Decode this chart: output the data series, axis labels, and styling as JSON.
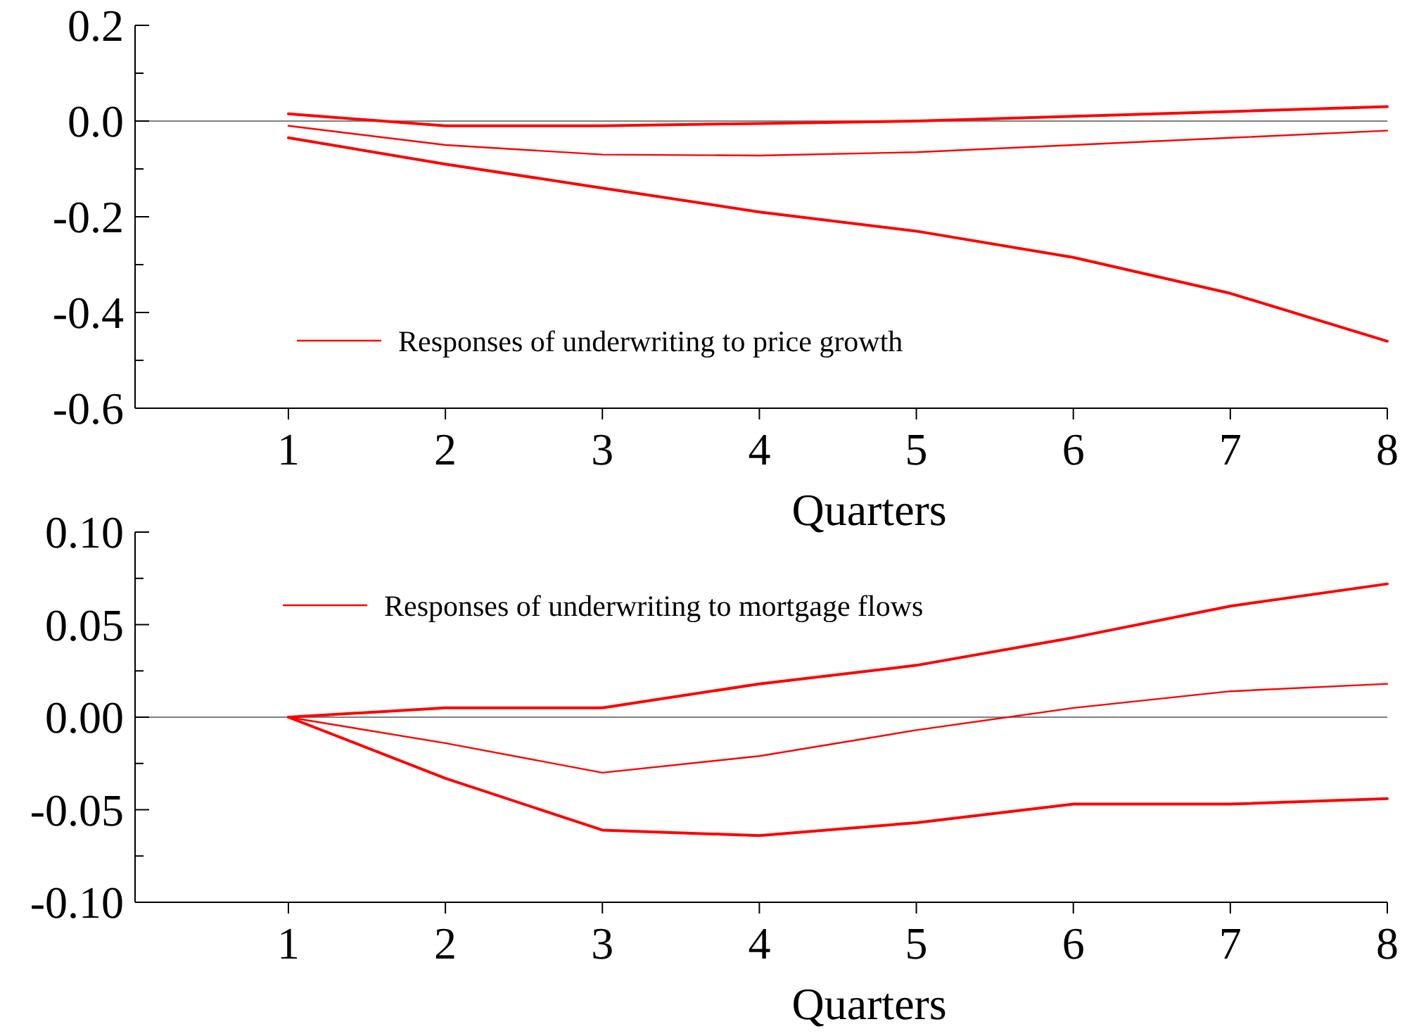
{
  "chart_data": [
    {
      "type": "line",
      "x": [
        1,
        2,
        3,
        4,
        5,
        6,
        7,
        8
      ],
      "xlabel": "Quarters",
      "xlim": [
        0,
        8
      ],
      "xticks": [
        1,
        2,
        3,
        4,
        5,
        6,
        7,
        8
      ],
      "ylim": [
        -0.6,
        0.2
      ],
      "yticks": [
        {
          "value": -0.6,
          "label": "-0.6"
        },
        {
          "value": -0.5,
          "label": null
        },
        {
          "value": -0.4,
          "label": "-0.4"
        },
        {
          "value": -0.3,
          "label": null
        },
        {
          "value": -0.2,
          "label": "-0.2"
        },
        {
          "value": -0.1,
          "label": null
        },
        {
          "value": 0,
          "label": "0.0"
        },
        {
          "value": 0.1,
          "label": null
        },
        {
          "value": 0.2,
          "label": "0.2"
        }
      ],
      "legend": "bottom left",
      "grid": false,
      "ref_lines": [
        {
          "axis": "y",
          "value": 0,
          "color": "#808080"
        }
      ],
      "series": [
        {
          "color": "#ff0000",
          "values": [
            0.015,
            -0.01,
            -0.01,
            -0.005,
            0.0,
            0.01,
            0.02,
            0.03
          ]
        },
        {
          "name": "Responses of underwriting to price growth",
          "color": "#ff0000",
          "values": [
            -0.01,
            -0.05,
            -0.07,
            -0.072,
            -0.065,
            -0.05,
            -0.035,
            -0.02
          ]
        },
        {
          "color": "#ff0000",
          "values": [
            -0.035,
            -0.09,
            -0.14,
            -0.19,
            -0.23,
            -0.285,
            -0.36,
            -0.46
          ]
        }
      ]
    },
    {
      "type": "line",
      "x": [
        1,
        2,
        3,
        4,
        5,
        6,
        7,
        8
      ],
      "xlabel": "Quarters",
      "xlim": [
        0,
        8
      ],
      "xticks": [
        1,
        2,
        3,
        4,
        5,
        6,
        7,
        8
      ],
      "ylim": [
        -0.1,
        0.1
      ],
      "yticks": [
        {
          "value": -0.1,
          "label": "-0.10"
        },
        {
          "value": -0.075,
          "label": null
        },
        {
          "value": -0.05,
          "label": "-0.05"
        },
        {
          "value": -0.025,
          "label": null
        },
        {
          "value": 0,
          "label": "0.00"
        },
        {
          "value": 0.025,
          "label": null
        },
        {
          "value": 0.05,
          "label": "0.05"
        },
        {
          "value": 0.075,
          "label": null
        },
        {
          "value": 0.1,
          "label": "0.10"
        }
      ],
      "legend": "top left",
      "grid": false,
      "ref_lines": [
        {
          "axis": "y",
          "value": 0,
          "color": "#808080"
        }
      ],
      "series": [
        {
          "color": "#ff0000",
          "values": [
            0,
            0.005,
            0.005,
            0.018,
            0.028,
            0.043,
            0.06,
            0.072
          ]
        },
        {
          "name": "Responses of underwriting to mortgage flows",
          "color": "#ff0000",
          "values": [
            0,
            -0.014,
            -0.03,
            -0.021,
            -0.007,
            0.005,
            0.014,
            0.018
          ]
        },
        {
          "color": "#ff0000",
          "values": [
            0,
            -0.033,
            -0.061,
            -0.064,
            -0.057,
            -0.047,
            -0.047,
            -0.044
          ]
        }
      ]
    }
  ]
}
